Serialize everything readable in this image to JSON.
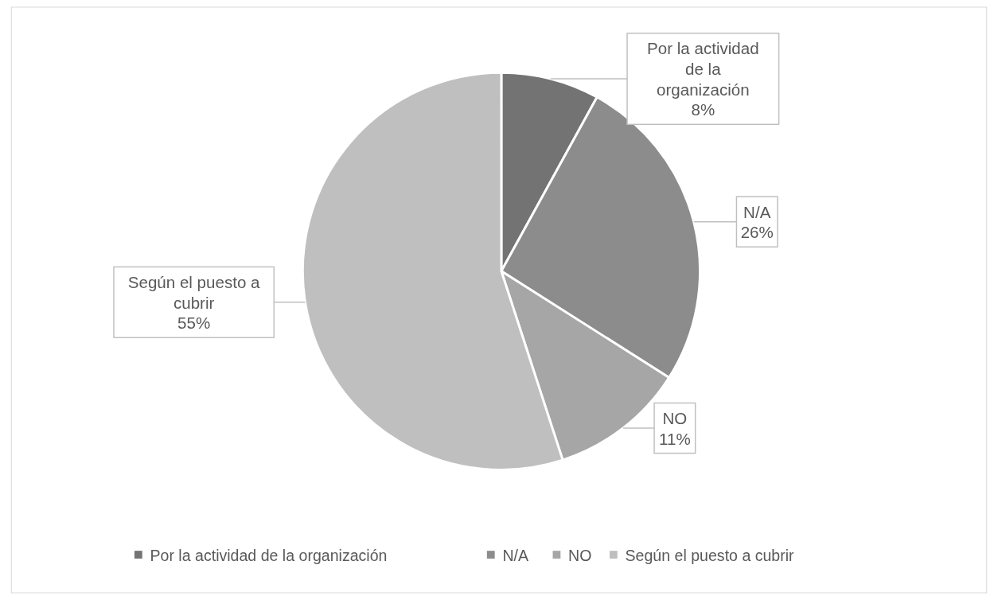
{
  "chart_data": {
    "type": "pie",
    "categories": [
      "Por la actividad de la organización",
      "N/A",
      "NO",
      "Según el puesto a cubrir"
    ],
    "values": [
      8,
      26,
      11,
      55
    ],
    "colors": [
      "#737373",
      "#8c8c8c",
      "#a6a6a6",
      "#bfbfbf"
    ],
    "value_labels": [
      "8%",
      "26%",
      "11%",
      "55%"
    ],
    "legend": "bottom"
  }
}
